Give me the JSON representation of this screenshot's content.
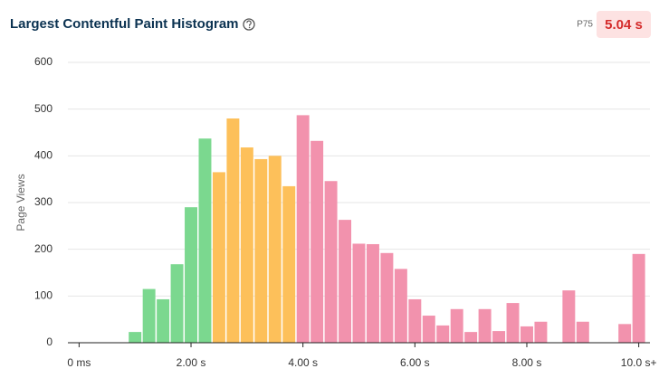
{
  "chart_data": {
    "type": "histogram",
    "title": "Largest Contentful Paint Histogram",
    "stat_label": "P75",
    "stat_value": "5.04 s",
    "y_label": "Page Views",
    "bins": [
      0.875,
      1.125,
      1.375,
      1.625,
      1.875,
      2.125,
      2.375,
      2.625,
      2.875,
      3.125,
      3.375,
      3.625,
      3.875,
      4.125,
      4.375,
      4.625,
      4.875,
      5.125,
      5.375,
      5.625,
      5.875,
      6.125,
      6.375,
      6.625,
      6.875,
      7.125,
      7.375,
      7.625,
      7.875,
      8.125,
      8.375,
      8.625,
      8.875,
      9.125,
      9.375,
      9.625,
      9.875,
      10.125
    ],
    "values": [
      23,
      115,
      93,
      168,
      290,
      437,
      365,
      480,
      418,
      393,
      400,
      335,
      487,
      432,
      346,
      263,
      212,
      211,
      192,
      158,
      93,
      58,
      37,
      72,
      23,
      72,
      25,
      85,
      35,
      45,
      0,
      112,
      45,
      0,
      0,
      40,
      190
    ],
    "colors": [
      "#7bd88f",
      "#7bd88f",
      "#7bd88f",
      "#7bd88f",
      "#7bd88f",
      "#7bd88f",
      "#fdc05a",
      "#fdc05a",
      "#fdc05a",
      "#fdc05a",
      "#fdc05a",
      "#fdc05a",
      "#f292ad",
      "#f292ad",
      "#f292ad",
      "#f292ad",
      "#f292ad",
      "#f292ad",
      "#f292ad",
      "#f292ad",
      "#f292ad",
      "#f292ad",
      "#f292ad",
      "#f292ad",
      "#f292ad",
      "#f292ad",
      "#f292ad",
      "#f292ad",
      "#f292ad",
      "#f292ad",
      "#f292ad",
      "#f292ad",
      "#f292ad",
      "#f292ad",
      "#f292ad",
      "#f292ad",
      "#f292ad"
    ],
    "xlim": [
      -0.2,
      10.2
    ],
    "xticks": [
      {
        "value": 0,
        "label": "0 ms"
      },
      {
        "value": 2,
        "label": "2.00 s"
      },
      {
        "value": 4,
        "label": "4.00 s"
      },
      {
        "value": 6,
        "label": "6.00 s"
      },
      {
        "value": 8,
        "label": "8.00 s"
      },
      {
        "value": 10,
        "label": "10.0 s+"
      }
    ],
    "ylim": [
      0,
      600
    ],
    "yticks": [
      0,
      100,
      200,
      300,
      400,
      500,
      600
    ],
    "grid": true
  }
}
